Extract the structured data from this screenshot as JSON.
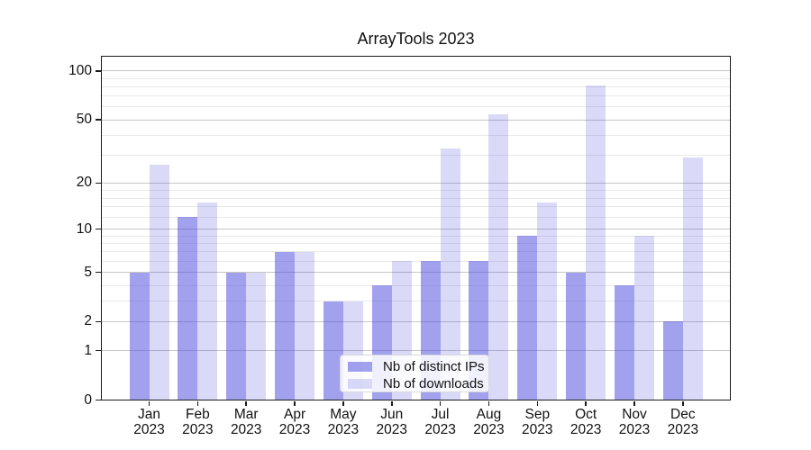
{
  "title": "ArrayTools 2023",
  "chart_data": {
    "type": "bar",
    "title": "ArrayTools 2023",
    "categories": [
      "Jan",
      "Feb",
      "Mar",
      "Apr",
      "May",
      "Jun",
      "Jul",
      "Aug",
      "Sep",
      "Oct",
      "Nov",
      "Dec"
    ],
    "year": "2023",
    "series": [
      {
        "name": "Nb of distinct IPs",
        "color": "rgba(68,68,221,0.5)",
        "values": [
          5,
          12,
          5,
          7,
          3,
          4,
          6,
          6,
          9,
          5,
          4,
          2
        ]
      },
      {
        "name": "Nb of downloads",
        "color": "rgba(68,68,221,0.2)",
        "values": [
          26,
          15,
          5,
          7,
          3,
          6,
          33,
          54,
          15,
          81,
          9,
          29
        ]
      }
    ],
    "xlabel": "",
    "ylabel": "",
    "yscale": "log1p",
    "ylim": [
      0,
      124
    ],
    "y_major_ticks": [
      0,
      1,
      2,
      5,
      10,
      20,
      50,
      100
    ],
    "y_tick_labels": [
      "0",
      "1",
      "2",
      "5",
      "10",
      "20",
      "50",
      "100"
    ],
    "y_minor_gridlines": [
      3,
      4,
      6,
      7,
      8,
      9,
      12,
      14,
      16,
      18,
      30,
      40,
      60,
      70,
      80,
      90
    ],
    "grid": true,
    "legend_position": "lower-center",
    "colors": {
      "grid_major": "#c6c6c6",
      "grid_minor": "#e9e9e9",
      "axis": "#1a1a1a",
      "text": "#111111"
    }
  }
}
